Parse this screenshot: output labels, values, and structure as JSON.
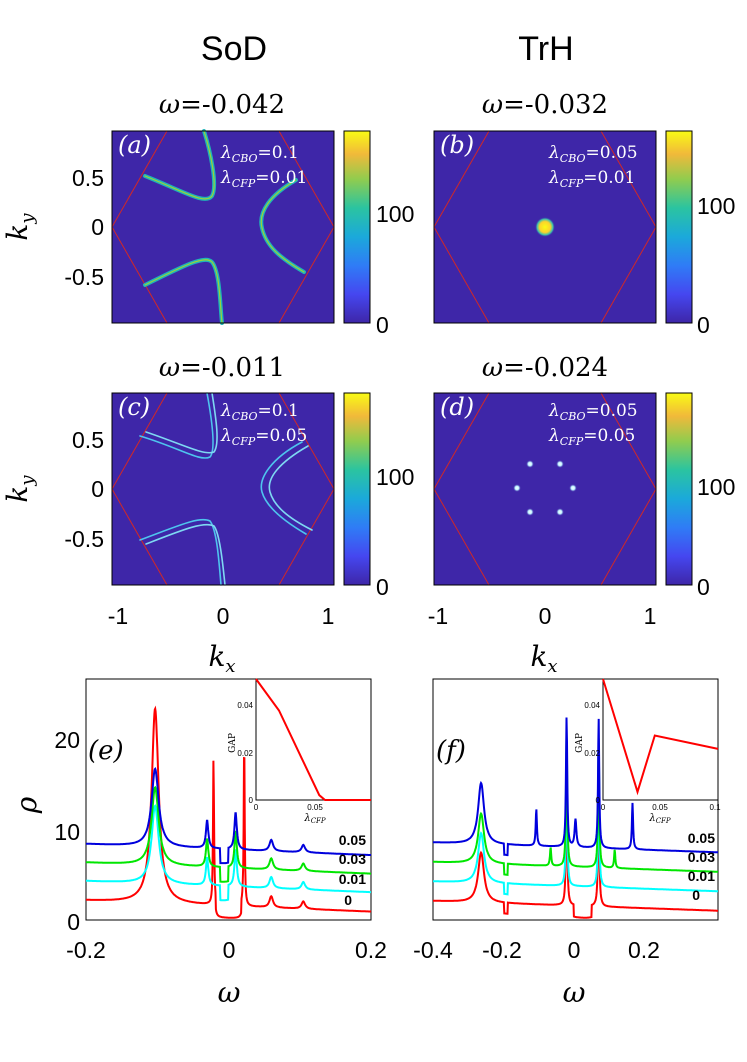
{
  "columns": [
    "SoD",
    "TrH"
  ],
  "axis_labels": {
    "kx": "k",
    "kx_sub": "x",
    "ky": "k",
    "ky_sub": "y",
    "omega": "ω",
    "rho": "ρ"
  },
  "chart_data": [
    {
      "id": "a",
      "type": "heatmap",
      "panel_label": "(a)",
      "title_prefix": "ω",
      "title_value": "=-0.042",
      "params": [
        {
          "sym": "λ",
          "sub": "CBO",
          "value": "=0.1"
        },
        {
          "sym": "λ",
          "sub": "CFP",
          "value": "=0.01"
        }
      ],
      "xlim": [
        -1,
        1
      ],
      "ylim": [
        -0.9,
        0.9
      ],
      "yticks": [
        "0.5",
        "0",
        "-0.5"
      ],
      "colorbar": {
        "range": [
          0,
          160
        ],
        "ticks": [
          "100",
          "0"
        ]
      },
      "features": "hyperbolic arcs"
    },
    {
      "id": "b",
      "type": "heatmap",
      "panel_label": "(b)",
      "title_prefix": "ω",
      "title_value": "=-0.032",
      "params": [
        {
          "sym": "λ",
          "sub": "CBO",
          "value": "=0.05"
        },
        {
          "sym": "λ",
          "sub": "CFP",
          "value": "=0.01"
        }
      ],
      "xlim": [
        -1,
        1
      ],
      "ylim": [
        -0.9,
        0.9
      ],
      "colorbar": {
        "range": [
          0,
          160
        ],
        "ticks": [
          "100",
          "0"
        ]
      },
      "features": "central spot"
    },
    {
      "id": "c",
      "type": "heatmap",
      "panel_label": "(c)",
      "title_prefix": "ω",
      "title_value": "=-0.011",
      "params": [
        {
          "sym": "λ",
          "sub": "CBO",
          "value": "=0.1"
        },
        {
          "sym": "λ",
          "sub": "CFP",
          "value": "=0.05"
        }
      ],
      "xlim": [
        -1,
        1
      ],
      "ylim": [
        -0.9,
        0.9
      ],
      "xticks": [
        "-1",
        "0",
        "1"
      ],
      "yticks": [
        "0.5",
        "0",
        "-0.5"
      ],
      "colorbar": {
        "range": [
          0,
          180
        ],
        "ticks": [
          "100",
          "0"
        ]
      },
      "features": "split arcs"
    },
    {
      "id": "d",
      "type": "heatmap",
      "panel_label": "(d)",
      "title_prefix": "ω",
      "title_value": "=-0.024",
      "params": [
        {
          "sym": "λ",
          "sub": "CBO",
          "value": "=0.05"
        },
        {
          "sym": "λ",
          "sub": "CFP",
          "value": "=0.05"
        }
      ],
      "xlim": [
        -1,
        1
      ],
      "ylim": [
        -0.9,
        0.9
      ],
      "xticks": [
        "-1",
        "0",
        "1"
      ],
      "colorbar": {
        "range": [
          0,
          180
        ],
        "ticks": [
          "100",
          "0"
        ]
      },
      "features": "six spots"
    },
    {
      "id": "e",
      "type": "line",
      "panel_label": "(e)",
      "xlim": [
        -0.2,
        0.2
      ],
      "ylim": [
        0,
        26
      ],
      "xticks": [
        "-0.2",
        "0",
        "0.2"
      ],
      "yticks": [
        "20",
        "10",
        "0"
      ],
      "series": [
        {
          "name": "0",
          "color": "#ff0000",
          "offset": 1.5,
          "base": 1.6,
          "gap": 0.058
        },
        {
          "name": "0.01",
          "color": "#00ffff",
          "offset": 3.6,
          "base": 1.5,
          "gap": 0.04
        },
        {
          "name": "0.03",
          "color": "#00e600",
          "offset": 5.6,
          "base": 1.4,
          "gap": 0.012
        },
        {
          "name": "0.05",
          "color": "#0000dd",
          "offset": 7.6,
          "base": 1.2,
          "gap": 0.0
        }
      ],
      "inset": {
        "type": "line",
        "xlabel": "λ",
        "xlabel_sub": "CFP",
        "ylabel": "GAP",
        "xlim": [
          0,
          0.1
        ],
        "ylim": [
          0,
          0.05
        ],
        "xticks": [
          "0",
          "0.05"
        ],
        "yticks": [
          "0.04",
          "0.02",
          "0"
        ],
        "x": [
          0.0,
          0.02,
          0.04,
          0.055,
          0.06,
          0.1
        ],
        "y": [
          0.052,
          0.037,
          0.017,
          0.002,
          0.0,
          0.0
        ]
      }
    },
    {
      "id": "f",
      "type": "line",
      "panel_label": "(f)",
      "xlim": [
        -0.42,
        0.38
      ],
      "ylim": [
        0,
        26
      ],
      "xticks": [
        "-0.4",
        "-0.2",
        "0",
        "0.2"
      ],
      "series": [
        {
          "name": "0",
          "color": "#ff0000",
          "offset": 1.5
        },
        {
          "name": "0.01",
          "color": "#00ffff",
          "offset": 3.6
        },
        {
          "name": "0.03",
          "color": "#00e600",
          "offset": 5.7
        },
        {
          "name": "0.05",
          "color": "#0000dd",
          "offset": 7.8
        }
      ],
      "inset": {
        "type": "line",
        "xlabel": "λ",
        "xlabel_sub": "CFP",
        "ylabel": "GAP",
        "xlim": [
          0,
          0.1
        ],
        "ylim": [
          0,
          0.045
        ],
        "xticks": [
          "0",
          "0.05",
          "0.1"
        ],
        "yticks": [
          "0.04",
          "0.02",
          "0"
        ],
        "x": [
          0.0,
          0.03,
          0.045,
          0.1
        ],
        "y": [
          0.046,
          0.003,
          0.024,
          0.019
        ]
      }
    }
  ]
}
